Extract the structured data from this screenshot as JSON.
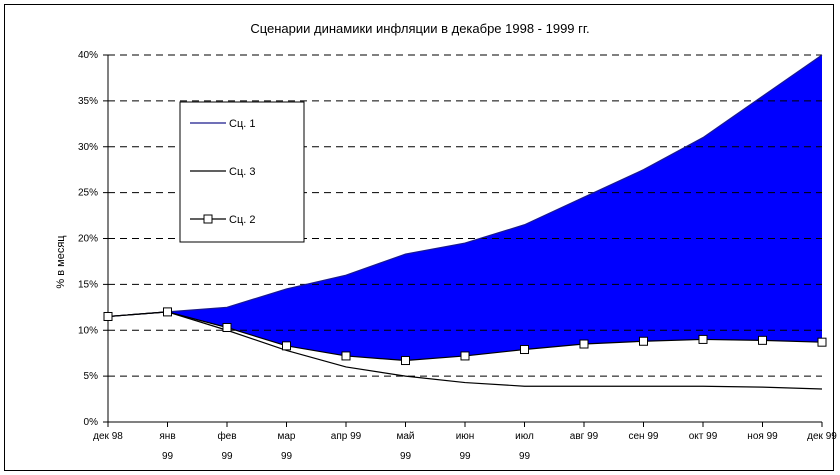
{
  "chart_data": {
    "type": "area",
    "title": "Сценарии динамики инфляции в декабре 1998 - 1999 гг.",
    "ylabel": "% в месяц",
    "xlabel": "",
    "ylim": [
      0,
      40
    ],
    "yticks": [
      "0%",
      "5%",
      "10%",
      "15%",
      "20%",
      "25%",
      "30%",
      "35%",
      "40%"
    ],
    "grid": "horizontal dashed",
    "legend_position": "upper-left",
    "categories": [
      [
        "дек 98"
      ],
      [
        "янв",
        "99"
      ],
      [
        "фев",
        "99"
      ],
      [
        "мар",
        "99"
      ],
      [
        "апр 99"
      ],
      [
        "май",
        "99"
      ],
      [
        "июн",
        "99"
      ],
      [
        "июл",
        "99"
      ],
      [
        "авг 99"
      ],
      [
        "сен 99"
      ],
      [
        "окт 99"
      ],
      [
        "ноя 99"
      ],
      [
        "дек 99"
      ]
    ],
    "series": [
      {
        "name": "Сц. 1",
        "color": "#1a1a8c",
        "values": [
          11.5,
          12,
          12.5,
          14.5,
          16,
          18.3,
          19.5,
          21.5,
          24.5,
          27.5,
          31,
          35.5,
          40
        ],
        "fill": "#0000ff"
      },
      {
        "name": "Сц. 3",
        "color": "#000000",
        "values": [
          11.5,
          12,
          10,
          7.8,
          6,
          5,
          4.3,
          3.9,
          3.9,
          3.9,
          3.9,
          3.8,
          3.6
        ]
      },
      {
        "name": "Сц. 2",
        "color": "#000000",
        "marker": "square",
        "values": [
          11.5,
          12,
          10.3,
          8.3,
          7.2,
          6.7,
          7.2,
          7.9,
          8.5,
          8.8,
          9,
          8.9,
          8.7
        ]
      }
    ]
  }
}
